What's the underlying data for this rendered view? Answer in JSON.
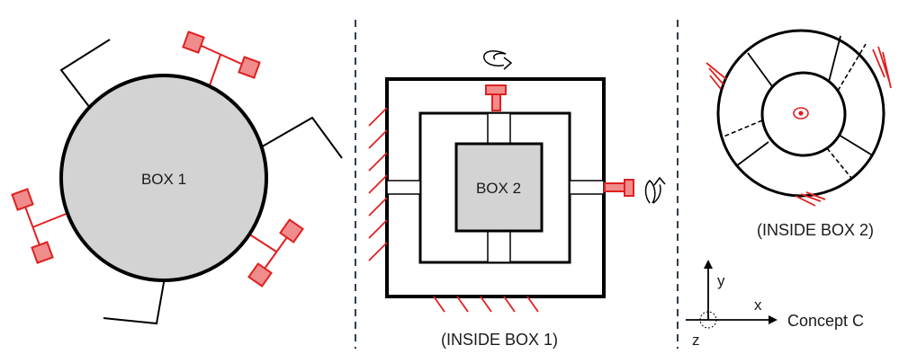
{
  "labels": {
    "box1": "BOX 1",
    "box2": "BOX 2",
    "inside_box1": "(INSIDE BOX 1)",
    "inside_box2": "(INSIDE BOX 2)",
    "concept": "Concept C",
    "axis_x": "x",
    "axis_y": "y",
    "axis_z": "z"
  },
  "colors": {
    "accent_red": "#e02020",
    "red_fill": "#f08c8c",
    "box_fill": "#d3d3d3",
    "stroke": "#000000",
    "divider": "#2f3e50"
  }
}
